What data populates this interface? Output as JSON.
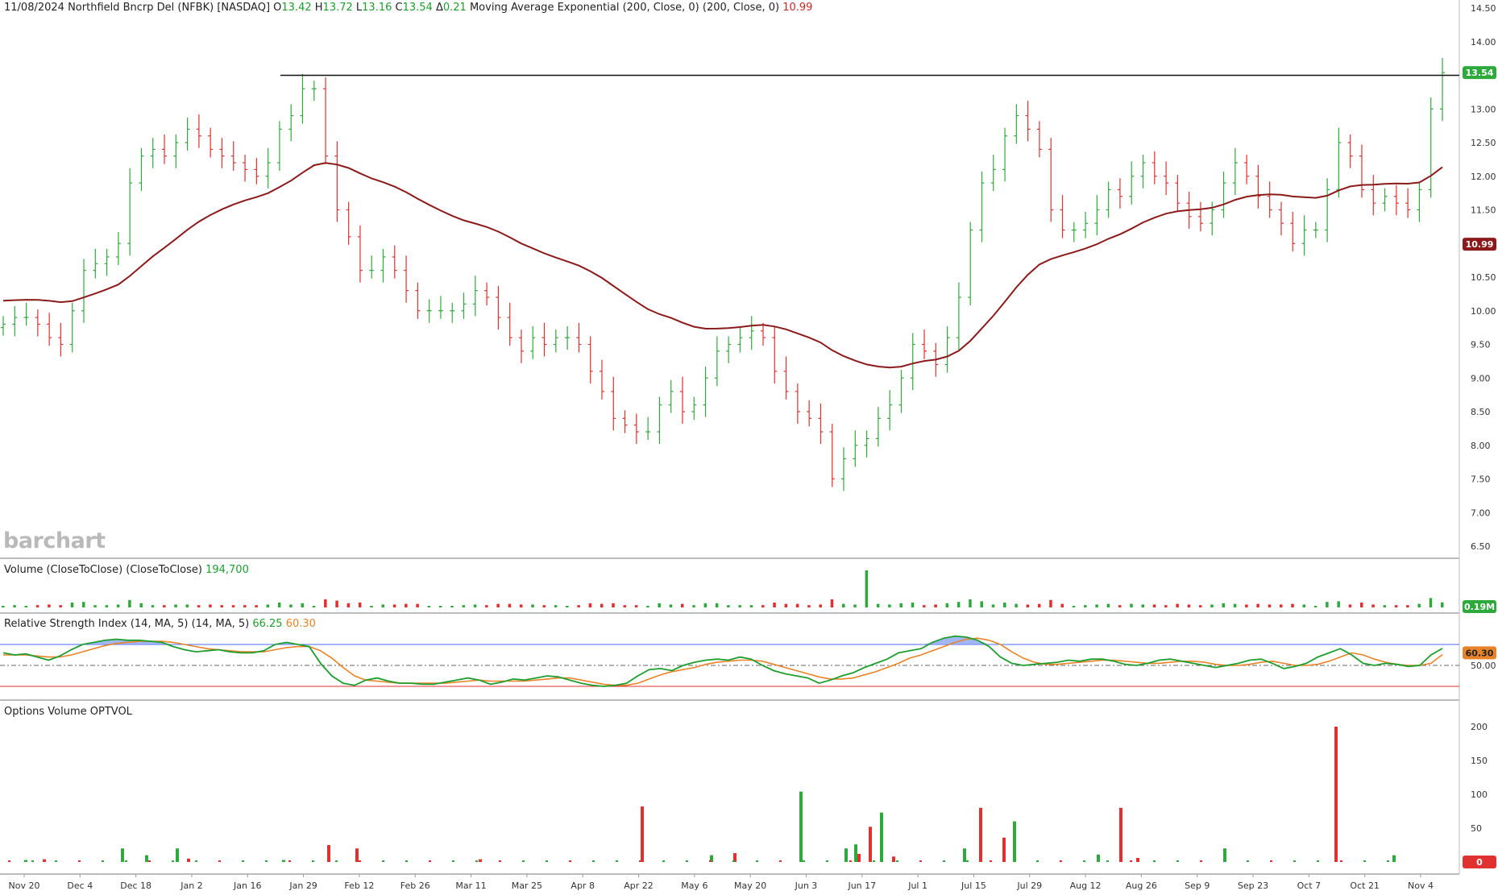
{
  "header": {
    "date": "11/08/2024",
    "symbol_name": "Northfield Bncrp Del (NFBK) [NASDAQ]",
    "open_label": "O",
    "open": "13.42",
    "high_label": "H",
    "high": "13.72",
    "low_label": "L",
    "low": "13.16",
    "close_label": "C",
    "close": "13.54",
    "change_label": "Δ",
    "change": "0.21",
    "study": "Moving Average Exponential (200, Close, 0)",
    "study_params": "(200, Close, 0)",
    "study_value": "10.99"
  },
  "logo": "barchart",
  "volume_panel": {
    "title": "Volume (CloseToClose)",
    "params": "(CloseToClose)",
    "value": "194,700",
    "badge": "0.19M"
  },
  "rsi_panel": {
    "title": "Relative Strength Index (14, MA, 5)",
    "params": "(14, MA, 5)",
    "value1": "66.25",
    "value2": "60.30",
    "badge": "60.30",
    "tick": "50.00"
  },
  "options_panel": {
    "title": "Options Volume  OPTVOL"
  },
  "colors": {
    "up": "#2eaa3c",
    "down": "#e0302f",
    "ema": "#8b1a1a",
    "rsi": "#1e9e2e",
    "rsi_ma": "#e8832a",
    "overbought": "#4a6cf7",
    "oversold": "#e0302f",
    "fill": "#8aa4f5"
  },
  "chart_data": [
    {
      "type": "ohlc",
      "title": "",
      "ylim": [
        6.5,
        14.5
      ],
      "yticks": [
        "6.50",
        "7.00",
        "7.50",
        "8.00",
        "8.50",
        "9.00",
        "9.50",
        "10.00",
        "10.50",
        "11.00",
        "11.50",
        "12.00",
        "12.50",
        "13.00",
        "13.50",
        "14.00",
        "14.50"
      ],
      "xticks": [
        "Nov 20",
        "Dec 4",
        "Dec 18",
        "Jan 2",
        "Jan 16",
        "Jan 29",
        "Feb 12",
        "Feb 26",
        "Mar 11",
        "Mar 25",
        "Apr 8",
        "Apr 22",
        "May 6",
        "May 20",
        "Jun 3",
        "Jun 17",
        "Jul 1",
        "Jul 15",
        "Jul 29",
        "Aug 12",
        "Aug 26",
        "Sep 9",
        "Sep 23",
        "Oct 7",
        "Oct 21",
        "Nov 4"
      ],
      "close_series": [
        9.8,
        9.9,
        9.9,
        9.8,
        9.6,
        9.5,
        10.0,
        10.6,
        10.7,
        10.8,
        11.0,
        11.9,
        12.3,
        12.4,
        12.3,
        12.5,
        12.7,
        12.6,
        12.4,
        12.3,
        12.2,
        12.1,
        12.0,
        12.2,
        12.7,
        12.9,
        13.3,
        13.3,
        12.3,
        11.5,
        11.1,
        10.6,
        10.6,
        10.8,
        10.6,
        10.3,
        10.0,
        10.0,
        10.0,
        10.0,
        10.1,
        10.3,
        10.2,
        9.9,
        9.6,
        9.4,
        9.6,
        9.5,
        9.6,
        9.6,
        9.5,
        9.1,
        8.8,
        8.4,
        8.3,
        8.2,
        8.2,
        8.6,
        8.8,
        8.5,
        8.6,
        9.0,
        9.4,
        9.5,
        9.6,
        9.7,
        9.6,
        9.1,
        8.8,
        8.5,
        8.4,
        8.2,
        7.5,
        7.8,
        8.0,
        8.1,
        8.4,
        8.6,
        9.0,
        9.5,
        9.4,
        9.2,
        9.6,
        10.2,
        11.2,
        11.9,
        12.1,
        12.6,
        12.9,
        12.7,
        12.4,
        11.5,
        11.2,
        11.2,
        11.3,
        11.5,
        11.8,
        11.7,
        12.0,
        12.2,
        12.0,
        11.9,
        11.6,
        11.4,
        11.3,
        11.5,
        11.9,
        12.2,
        12.0,
        11.7,
        11.5,
        11.3,
        11.0,
        11.2,
        11.2,
        11.8,
        12.5,
        12.3,
        11.8,
        11.6,
        11.7,
        11.6,
        11.5,
        11.8,
        13.0,
        13.54
      ],
      "ema_label": "10.99",
      "last_price_label": "13.54",
      "resistance_level": 13.5
    },
    {
      "type": "bar",
      "title": "Volume (CloseToClose)",
      "last_value": "194,700"
    },
    {
      "type": "line",
      "title": "Relative Strength Index (14, MA, 5)",
      "ylim": [
        0,
        100
      ],
      "levels": [
        70,
        50,
        30
      ],
      "series": [
        {
          "name": "RSI",
          "values": [
            62,
            60,
            61,
            58,
            55,
            59,
            65,
            70,
            72,
            74,
            75,
            74,
            74,
            73,
            72,
            68,
            65,
            63,
            64,
            65,
            63,
            62,
            62,
            64,
            70,
            72,
            70,
            68,
            52,
            40,
            33,
            31,
            36,
            38,
            35,
            33,
            33,
            32,
            32,
            34,
            36,
            38,
            36,
            32,
            34,
            37,
            36,
            38,
            40,
            39,
            36,
            33,
            31,
            30,
            31,
            33,
            40,
            46,
            47,
            45,
            50,
            53,
            55,
            56,
            55,
            58,
            56,
            50,
            45,
            42,
            40,
            38,
            33,
            36,
            40,
            43,
            48,
            52,
            56,
            62,
            64,
            66,
            72,
            76,
            78,
            77,
            74,
            68,
            58,
            52,
            50,
            51,
            52,
            53,
            55,
            54,
            56,
            56,
            54,
            51,
            50,
            52,
            55,
            56,
            54,
            52,
            50,
            48,
            50,
            52,
            55,
            56,
            52,
            47,
            49,
            52,
            58,
            62,
            66,
            60,
            52,
            50,
            52,
            51,
            49,
            50,
            60,
            66.25
          ]
        },
        {
          "name": "MA",
          "values": [
            60,
            60,
            60,
            59,
            58,
            58,
            60,
            63,
            66,
            69,
            71,
            72,
            73,
            73,
            73,
            72,
            70,
            68,
            66,
            65,
            64,
            63,
            63,
            63,
            65,
            67,
            68,
            68,
            64,
            57,
            48,
            40,
            36,
            35,
            34,
            33,
            33,
            33,
            33,
            33,
            34,
            35,
            36,
            35,
            35,
            35,
            35,
            36,
            37,
            38,
            38,
            36,
            34,
            32,
            31,
            31,
            33,
            37,
            41,
            44,
            46,
            48,
            51,
            53,
            54,
            55,
            55,
            54,
            51,
            48,
            45,
            42,
            39,
            37,
            37,
            38,
            41,
            44,
            48,
            52,
            57,
            60,
            64,
            68,
            72,
            75,
            76,
            74,
            70,
            63,
            57,
            53,
            51,
            51,
            52,
            53,
            54,
            55,
            55,
            54,
            53,
            52,
            52,
            53,
            54,
            54,
            53,
            51,
            50,
            50,
            51,
            53,
            54,
            52,
            50,
            50,
            51,
            54,
            58,
            62,
            60,
            56,
            53,
            51,
            50,
            50,
            52,
            60.3
          ]
        }
      ]
    },
    {
      "type": "bar",
      "title": "Options Volume  OPTVOL",
      "ylim": [
        0,
        220
      ],
      "yticks": [
        "0",
        "50",
        "100",
        "150",
        "200"
      ]
    }
  ]
}
